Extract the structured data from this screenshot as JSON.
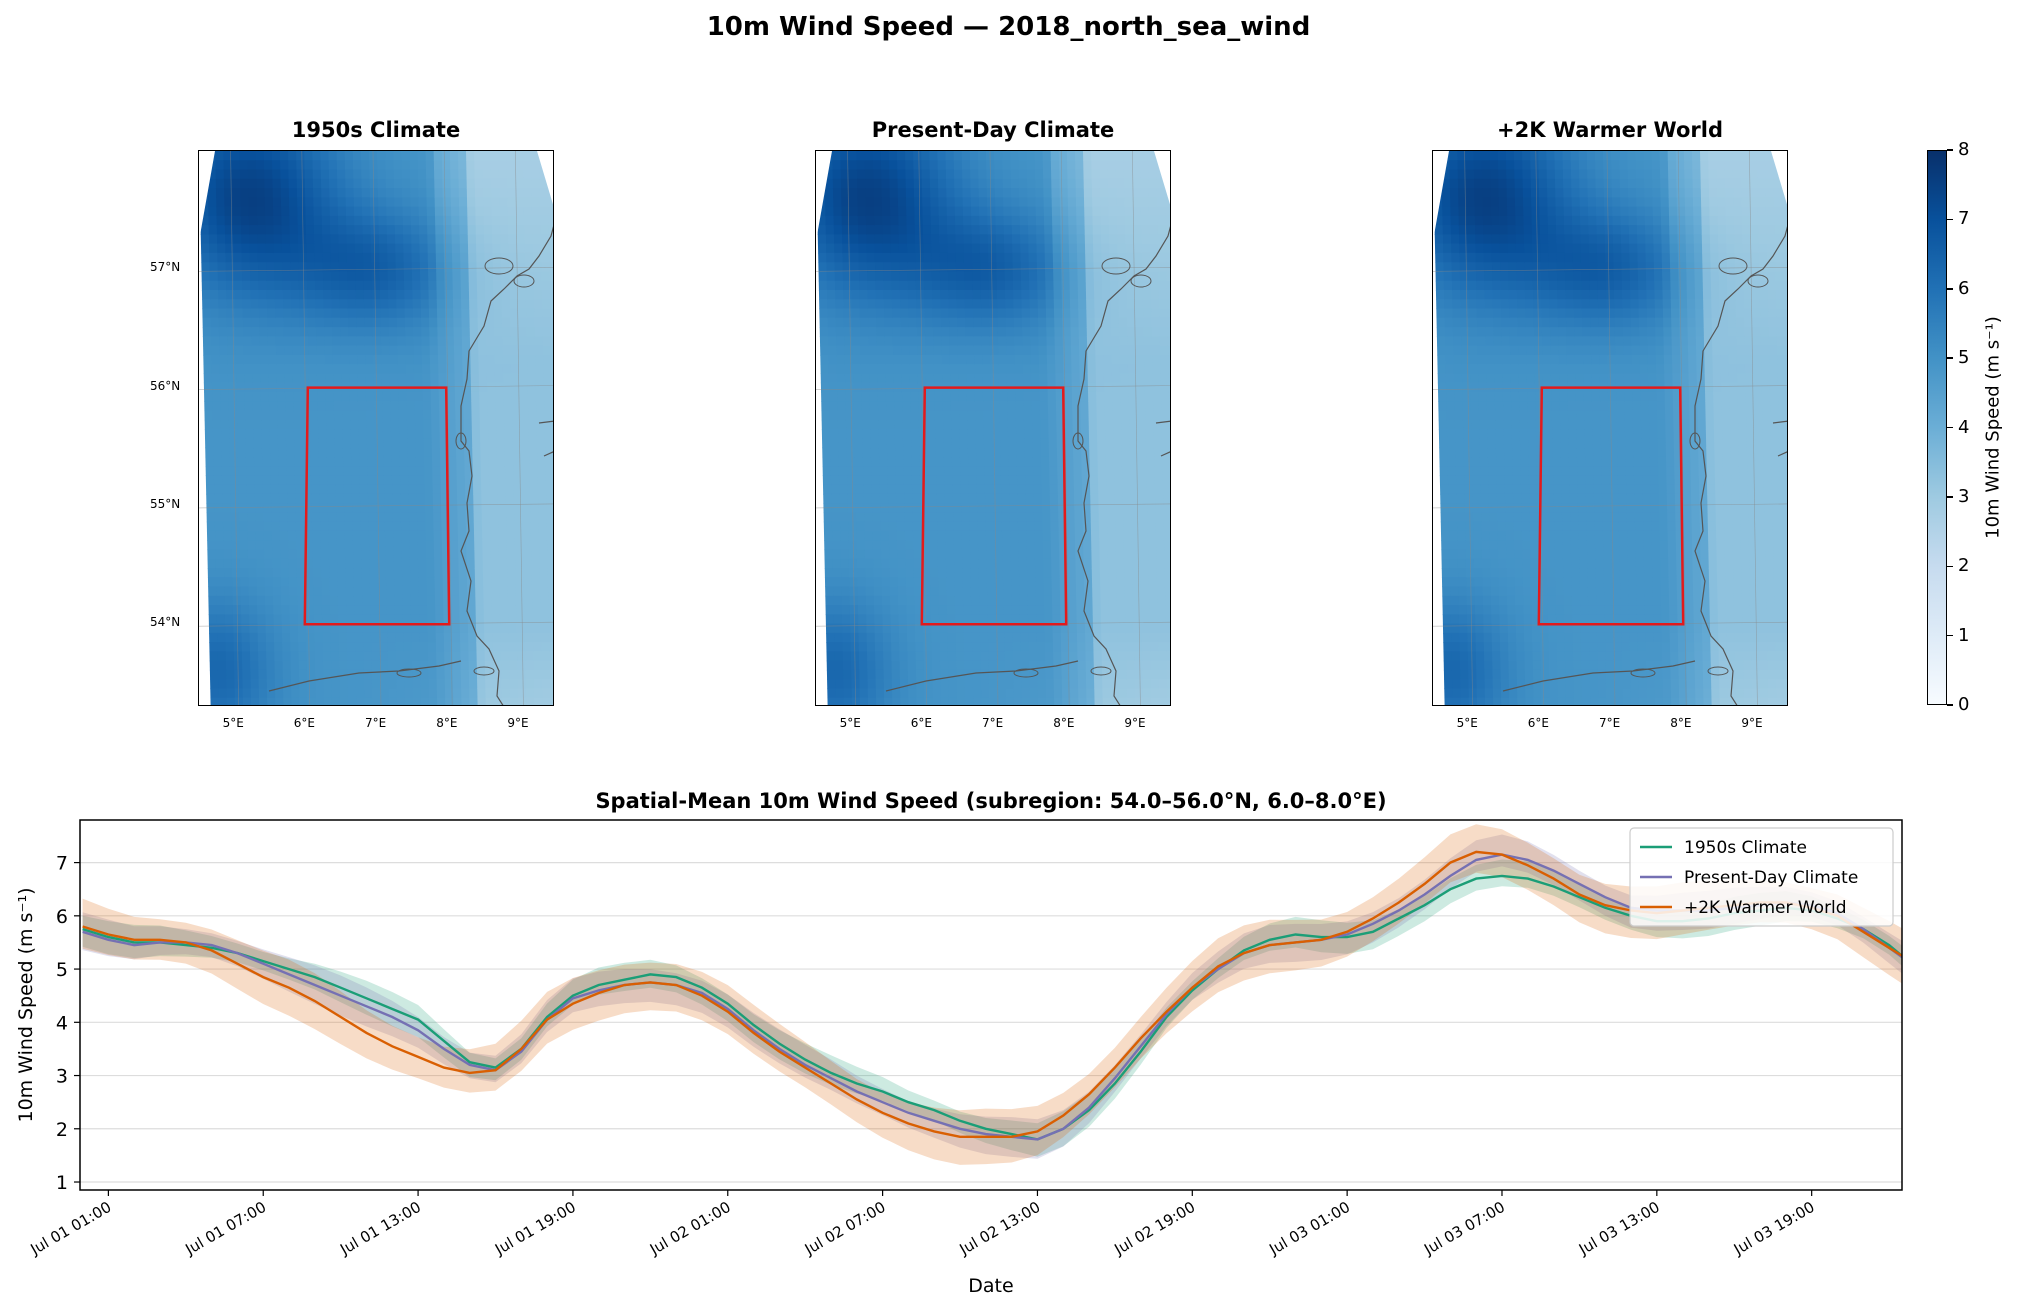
{
  "suptitle": "10m Wind Speed — 2018_north_sea_wind",
  "maps": [
    {
      "title": "1950s Climate"
    },
    {
      "title": "Present-Day Climate"
    },
    {
      "title": "+2K Warmer World"
    }
  ],
  "map_axes": {
    "lon_ticks": [
      "5°E",
      "6°E",
      "7°E",
      "8°E",
      "9°E"
    ],
    "lat_ticks": [
      "57°N",
      "56°N",
      "55°N",
      "54°N"
    ],
    "subregion_box": {
      "lat": [
        54.0,
        56.0
      ],
      "lon": [
        6.0,
        8.0
      ]
    }
  },
  "colorbar": {
    "label": "10m Wind Speed (m s⁻¹)",
    "ticks": [
      "0",
      "1",
      "2",
      "3",
      "4",
      "5",
      "6",
      "7",
      "8"
    ],
    "range": [
      0,
      8
    ],
    "cmap": "Blues"
  },
  "chart_data": {
    "type": "line",
    "title": "Spatial-Mean 10m Wind Speed (subregion: 54.0–56.0°N, 6.0–8.0°E)",
    "xlabel": "Date",
    "ylabel": "10m Wind Speed (m s⁻¹)",
    "ylim": [
      0.85,
      7.8
    ],
    "yticks": [
      1,
      2,
      3,
      4,
      5,
      6,
      7
    ],
    "grid": "horizontal",
    "legend": "top-right",
    "x_ticks": [
      "Jul 01 01:00",
      "Jul 01 07:00",
      "Jul 01 13:00",
      "Jul 01 19:00",
      "Jul 02 01:00",
      "Jul 02 07:00",
      "Jul 02 13:00",
      "Jul 02 19:00",
      "Jul 03 01:00",
      "Jul 03 07:00",
      "Jul 03 13:00",
      "Jul 03 19:00"
    ],
    "x_start": "Jul 01 00:00",
    "x_step_hours": 1,
    "x_range_hours": [
      -0.1,
      70.5
    ],
    "series": [
      {
        "name": "1950s Climate",
        "color": "#1b9e77",
        "values": [
          5.75,
          5.6,
          5.5,
          5.5,
          5.45,
          5.4,
          5.3,
          5.15,
          5.0,
          4.85,
          4.65,
          4.45,
          4.25,
          4.05,
          3.65,
          3.25,
          3.15,
          3.5,
          4.1,
          4.5,
          4.7,
          4.8,
          4.9,
          4.85,
          4.65,
          4.35,
          3.95,
          3.6,
          3.3,
          3.05,
          2.85,
          2.7,
          2.5,
          2.35,
          2.15,
          2.0,
          1.9,
          1.8,
          2.0,
          2.35,
          2.85,
          3.45,
          4.1,
          4.6,
          5.0,
          5.35,
          5.55,
          5.65,
          5.6,
          5.6,
          5.7,
          5.95,
          6.2,
          6.5,
          6.7,
          6.75,
          6.7,
          6.55,
          6.35,
          6.15,
          6.0,
          5.9,
          5.9,
          5.95,
          6.05,
          6.1,
          6.15,
          6.1,
          5.95,
          5.75,
          5.45,
          5.05
        ],
        "band": 0.25
      },
      {
        "name": "Present-Day Climate",
        "color": "#7570b3",
        "values": [
          5.7,
          5.55,
          5.45,
          5.5,
          5.5,
          5.45,
          5.3,
          5.1,
          4.9,
          4.7,
          4.5,
          4.3,
          4.1,
          3.85,
          3.5,
          3.2,
          3.1,
          3.45,
          4.05,
          4.45,
          4.6,
          4.7,
          4.75,
          4.7,
          4.55,
          4.25,
          3.85,
          3.5,
          3.2,
          2.95,
          2.7,
          2.5,
          2.3,
          2.15,
          2.0,
          1.9,
          1.85,
          1.8,
          2.0,
          2.4,
          2.95,
          3.55,
          4.15,
          4.65,
          5.0,
          5.3,
          5.45,
          5.5,
          5.55,
          5.65,
          5.85,
          6.1,
          6.4,
          6.75,
          7.05,
          7.15,
          7.05,
          6.85,
          6.6,
          6.35,
          6.15,
          6.1,
          6.1,
          6.1,
          6.15,
          6.2,
          6.25,
          6.2,
          6.05,
          5.75,
          5.4,
          5.05
        ],
        "band": 0.3
      },
      {
        "name": "+2K Warmer World",
        "color": "#d95f02",
        "values": [
          5.8,
          5.65,
          5.55,
          5.55,
          5.5,
          5.35,
          5.1,
          4.85,
          4.65,
          4.4,
          4.1,
          3.8,
          3.55,
          3.35,
          3.15,
          3.05,
          3.1,
          3.5,
          4.05,
          4.35,
          4.55,
          4.7,
          4.75,
          4.7,
          4.5,
          4.2,
          3.8,
          3.45,
          3.15,
          2.85,
          2.55,
          2.3,
          2.1,
          1.95,
          1.85,
          1.85,
          1.85,
          1.95,
          2.25,
          2.65,
          3.15,
          3.7,
          4.2,
          4.65,
          5.05,
          5.3,
          5.45,
          5.5,
          5.55,
          5.7,
          5.95,
          6.25,
          6.6,
          7.0,
          7.2,
          7.15,
          6.95,
          6.7,
          6.4,
          6.2,
          6.1,
          6.05,
          6.1,
          6.15,
          6.2,
          6.25,
          6.25,
          6.15,
          6.0,
          5.7,
          5.4,
          5.1
        ],
        "band": 0.45
      }
    ]
  }
}
